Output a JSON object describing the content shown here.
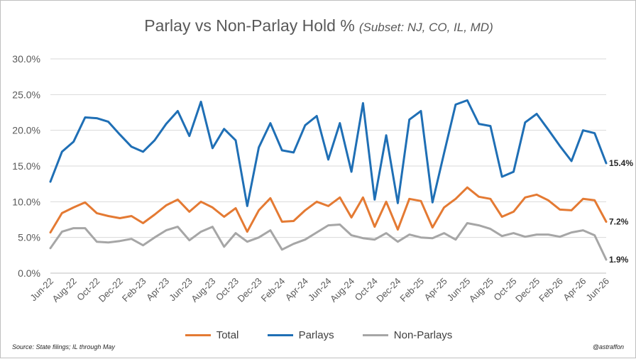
{
  "colors": {
    "total": "#e47a33",
    "parlays": "#1f6fb5",
    "non_parlays": "#a6a6a6",
    "grid": "#d9d9d9"
  },
  "chart_data": {
    "type": "line",
    "title": "Parlay vs Non-Parlay Hold %",
    "subtitle": "(Subset: NJ, CO, IL, MD)",
    "xlabel": "",
    "ylabel": "",
    "ylim": [
      0,
      30
    ],
    "yticks": [
      "0.0%",
      "5.0%",
      "10.0%",
      "15.0%",
      "20.0%",
      "25.0%",
      "30.0%"
    ],
    "grid": "horizontal",
    "legend_position": "bottom",
    "x": [
      "Jun-22",
      "Jul-22",
      "Aug-22",
      "Sep-22",
      "Oct-22",
      "Nov-22",
      "Dec-22",
      "Jan-23",
      "Feb-23",
      "Mar-23",
      "Apr-23",
      "May-23",
      "Jun-23",
      "Jul-23",
      "Aug-23",
      "Sep-23",
      "Oct-23",
      "Nov-23",
      "Dec-23",
      "Jan-24",
      "Feb-24",
      "Mar-24",
      "Apr-24",
      "May-24",
      "Jun-24",
      "Jul-24",
      "Aug-24",
      "Sep-24",
      "Oct-24",
      "Nov-24",
      "Dec-24",
      "Jan-25",
      "Feb-25",
      "Mar-25",
      "Apr-25",
      "May-25",
      "Jun-25",
      "Jul-25",
      "Aug-25",
      "Sep-25",
      "Oct-25",
      "Nov-25",
      "Dec-25",
      "Jan-26",
      "Feb-26",
      "Mar-26",
      "Apr-26",
      "May-26",
      "Jun-26"
    ],
    "x_tick_labels": [
      "Jun-22",
      "Aug-22",
      "Oct-22",
      "Dec-22",
      "Feb-23",
      "Apr-23",
      "Jun-23",
      "Aug-23",
      "Oct-23",
      "Dec-23",
      "Feb-24",
      "Apr-24",
      "Jun-24",
      "Aug-24",
      "Oct-24",
      "Dec-24",
      "Feb-25",
      "Apr-25",
      "Jun-25",
      "Aug-25",
      "Oct-25",
      "Dec-25",
      "Feb-26",
      "Apr-26",
      "Jun-26"
    ],
    "series": [
      {
        "name": "Total",
        "key": "total",
        "values": [
          5.7,
          8.4,
          9.2,
          9.9,
          8.4,
          8.0,
          7.7,
          8.0,
          7.0,
          8.2,
          9.5,
          10.3,
          8.6,
          10.0,
          9.2,
          7.9,
          9.1,
          5.8,
          8.8,
          10.5,
          7.2,
          7.3,
          8.8,
          10.0,
          9.4,
          10.6,
          7.8,
          10.6,
          6.5,
          10.0,
          6.1,
          10.4,
          10.1,
          6.4,
          9.2,
          10.4,
          12.0,
          10.7,
          10.4,
          7.9,
          8.6,
          10.6,
          11.0,
          10.2,
          8.9,
          8.8,
          10.4,
          10.2,
          7.2
        ],
        "end_label": "7.2%"
      },
      {
        "name": "Parlays",
        "key": "parlays",
        "values": [
          12.8,
          17.0,
          18.4,
          21.8,
          21.7,
          21.2,
          19.4,
          17.7,
          17.0,
          18.6,
          20.9,
          22.7,
          19.2,
          24.0,
          17.5,
          20.2,
          18.6,
          9.4,
          17.6,
          21.0,
          17.2,
          16.9,
          20.7,
          22.0,
          15.9,
          21.0,
          14.2,
          23.8,
          10.3,
          19.3,
          9.8,
          21.5,
          22.7,
          9.9,
          16.8,
          23.6,
          24.2,
          20.9,
          20.6,
          13.5,
          14.2,
          21.1,
          22.3,
          20.1,
          17.8,
          15.7,
          20.0,
          19.6,
          15.4
        ],
        "end_label": "15.4%"
      },
      {
        "name": "Non-Parlays",
        "key": "non_parlays",
        "values": [
          3.5,
          5.8,
          6.3,
          6.3,
          4.4,
          4.3,
          4.5,
          4.8,
          3.9,
          5.0,
          6.0,
          6.5,
          4.6,
          5.8,
          6.5,
          3.7,
          5.6,
          4.4,
          5.0,
          6.0,
          3.3,
          4.1,
          4.7,
          5.7,
          6.7,
          6.8,
          5.3,
          4.9,
          4.7,
          5.6,
          4.4,
          5.4,
          5.0,
          4.9,
          5.6,
          4.7,
          7.0,
          6.7,
          6.2,
          5.2,
          5.6,
          5.1,
          5.4,
          5.4,
          5.1,
          5.7,
          6.0,
          5.3,
          1.9
        ],
        "end_label": "1.9%"
      }
    ]
  },
  "legend": {
    "total": "Total",
    "parlays": "Parlays",
    "non_parlays": "Non-Parlays"
  },
  "footer": {
    "source": "Source:  State filings; IL through  May",
    "credit": "@astraffon"
  }
}
